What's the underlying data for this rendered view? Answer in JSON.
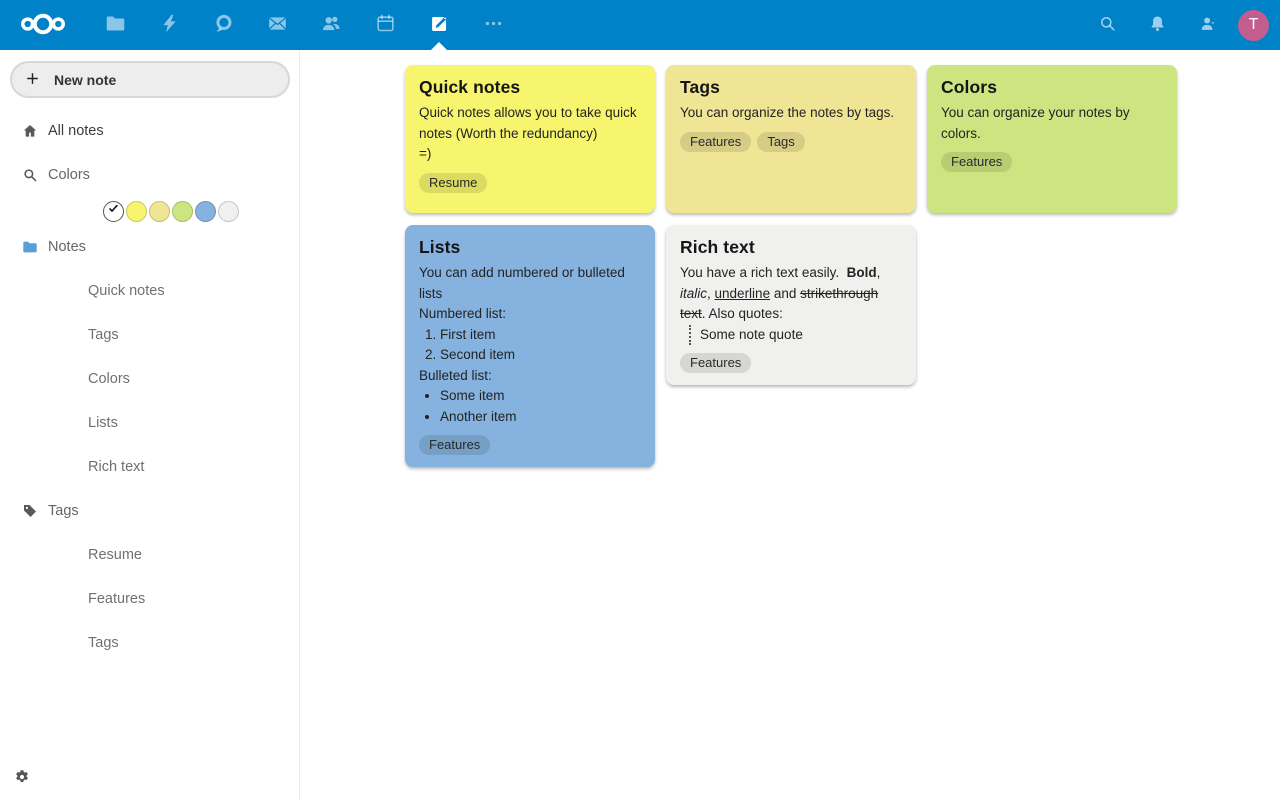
{
  "colors": {
    "topbar": "#0082c9",
    "avatar_bg": "#c25d8d",
    "sidebar_folder": "#5a9ed6",
    "note_yellow": "#f7f56d",
    "note_tan": "#f0e595",
    "note_green": "#cde581",
    "note_blue": "#85b2de",
    "note_gray": "#f0f0ef"
  },
  "header": {
    "apps": [
      {
        "name": "files",
        "icon": "folder-icon"
      },
      {
        "name": "activity",
        "icon": "lightning-icon"
      },
      {
        "name": "talk",
        "icon": "talk-icon"
      },
      {
        "name": "mail",
        "icon": "mail-icon"
      },
      {
        "name": "contacts",
        "icon": "contacts-icon"
      },
      {
        "name": "calendar",
        "icon": "calendar-icon"
      },
      {
        "name": "notes",
        "icon": "notes-icon",
        "active": true
      },
      {
        "name": "more-apps",
        "icon": "more-icon"
      }
    ],
    "avatar_initial": "T"
  },
  "sidebar": {
    "new_note": "New note",
    "nav": [
      {
        "label": "All notes",
        "icon": "home-icon",
        "strong": true
      },
      {
        "label": "Colors",
        "icon": "magnify-icon",
        "strong": false
      }
    ],
    "color_filters": [
      {
        "type": "check"
      },
      {
        "type": "color",
        "value": "#f7f56d"
      },
      {
        "type": "color",
        "value": "#f0e595"
      },
      {
        "type": "color",
        "value": "#cde581"
      },
      {
        "type": "color",
        "value": "#85b2de"
      },
      {
        "type": "color",
        "value": "#f0f0ef"
      }
    ],
    "sections": [
      {
        "label": "Notes",
        "icon": "folder-icon",
        "icon_blue": true,
        "children": [
          "Quick notes",
          "Tags",
          "Colors",
          "Lists",
          "Rich text"
        ]
      },
      {
        "label": "Tags",
        "icon": "tag-icon",
        "icon_blue": false,
        "children": [
          "Resume",
          "Features",
          "Tags"
        ]
      }
    ]
  },
  "notes": [
    {
      "title": "Quick notes",
      "color": "#f7f56d",
      "column": 0,
      "blocks": [
        {
          "type": "p",
          "runs": [
            {
              "t": "Quick notes allows you to take quick notes (Worth the redundancy)"
            }
          ]
        },
        {
          "type": "p",
          "runs": [
            {
              "t": "=)"
            }
          ]
        }
      ],
      "tags": [
        "Resume"
      ]
    },
    {
      "title": "Tags",
      "color": "#f0e595",
      "column": 1,
      "blocks": [
        {
          "type": "p",
          "runs": [
            {
              "t": "You can organize the notes by tags."
            }
          ]
        }
      ],
      "tags": [
        "Features",
        "Tags"
      ]
    },
    {
      "title": "Colors",
      "color": "#cde581",
      "column": 2,
      "blocks": [
        {
          "type": "p",
          "runs": [
            {
              "t": "You can organize your notes by colors."
            }
          ]
        }
      ],
      "tags": [
        "Features"
      ]
    },
    {
      "title": "Lists",
      "color": "#85b2de",
      "column": 0,
      "blocks": [
        {
          "type": "p",
          "runs": [
            {
              "t": "You can add numbered or bulleted lists"
            }
          ]
        },
        {
          "type": "p",
          "runs": [
            {
              "t": "Numbered list:"
            }
          ]
        },
        {
          "type": "ol",
          "items": [
            "First item",
            "Second item"
          ]
        },
        {
          "type": "p",
          "runs": [
            {
              "t": "Bulleted list:"
            }
          ]
        },
        {
          "type": "ul",
          "items": [
            "Some item",
            "Another item"
          ]
        }
      ],
      "tags": [
        "Features"
      ]
    },
    {
      "title": "Rich text",
      "color": "#f0f0ef",
      "column": 1,
      "blocks": [
        {
          "type": "p",
          "runs": [
            {
              "t": "You have a rich text easily.  "
            },
            {
              "t": "Bold",
              "b": true
            },
            {
              "t": ", "
            },
            {
              "t": "italic",
              "i": true
            },
            {
              "t": ", "
            },
            {
              "t": "underline",
              "u": true
            },
            {
              "t": " and "
            },
            {
              "t": "strikethrough text",
              "s": true
            },
            {
              "t": ". Also quotes:"
            }
          ]
        },
        {
          "type": "quote",
          "text": "Some note quote"
        }
      ],
      "tags": [
        "Features"
      ]
    }
  ]
}
